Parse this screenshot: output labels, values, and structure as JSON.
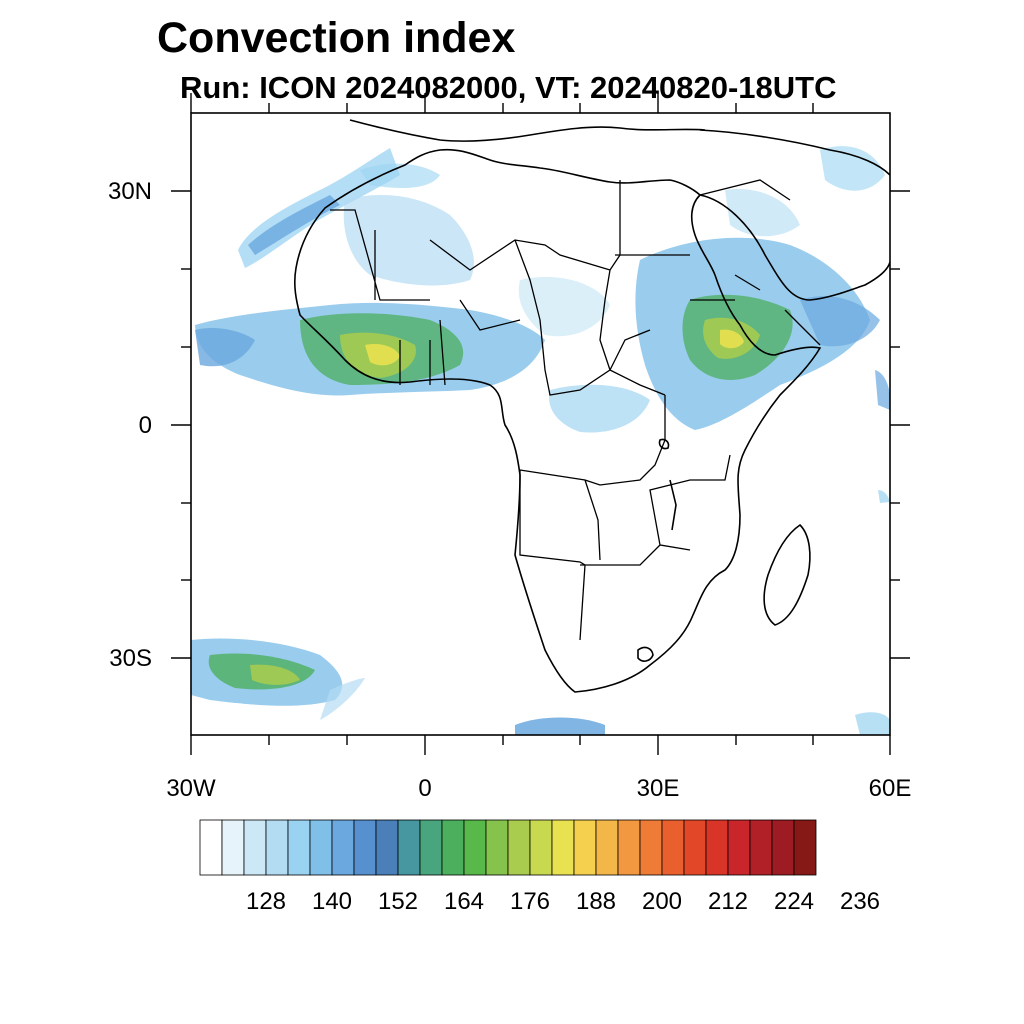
{
  "title": "Convection index",
  "subtitle": "Run: ICON 2024082000,  VT: 20240820-18UTC",
  "lat_labels": [
    "30N",
    "0",
    "30S"
  ],
  "lon_labels": [
    "30W",
    "0",
    "30E",
    "60E"
  ],
  "colorbar": {
    "labels": [
      "128",
      "140",
      "152",
      "164",
      "176",
      "188",
      "200",
      "212",
      "224",
      "236"
    ],
    "colors": [
      "#ffffff",
      "#e6f3fb",
      "#cce8f7",
      "#b3dcf3",
      "#9ad3f1",
      "#7fbfe8",
      "#6aa8df",
      "#5790cf",
      "#4a7fb9",
      "#4797a0",
      "#48a57d",
      "#4caf5e",
      "#58b84a",
      "#85c34c",
      "#a9cc4e",
      "#c8d84f",
      "#e8e150",
      "#f4d04e",
      "#f3b648",
      "#f29840",
      "#ef7c36",
      "#ea5f2e",
      "#e24828",
      "#d93428",
      "#c8262a",
      "#b11f27",
      "#9d1b22",
      "#861816"
    ]
  }
}
